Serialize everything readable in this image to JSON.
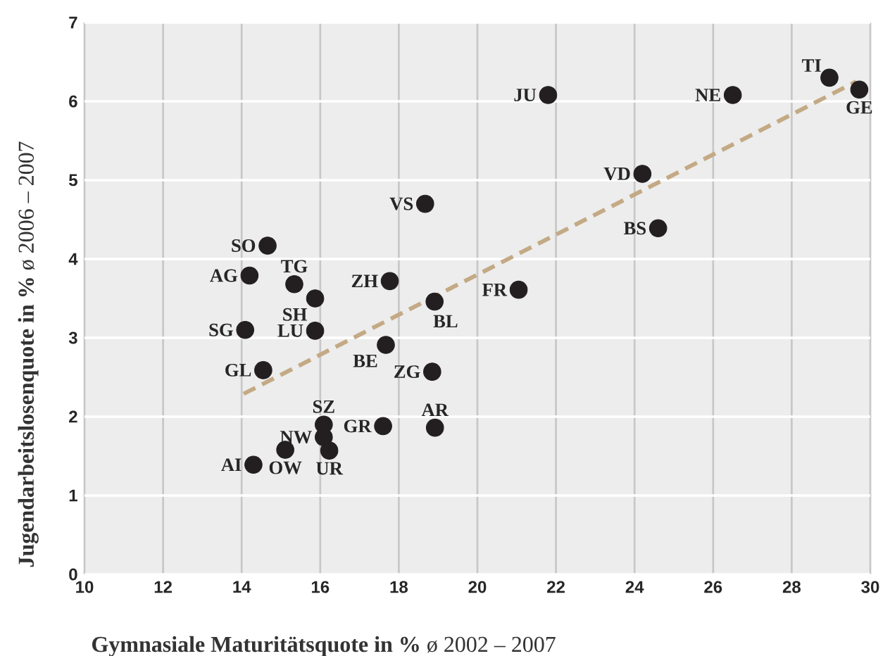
{
  "chart_data": {
    "type": "scatter",
    "xlabel": "**Gymnasiale Maturitätsquote in %** ø 2002 – 2007",
    "ylabel": "**Jugendarbeitslosenquote in %** ø 2006 – 2007",
    "xlim": [
      10,
      30
    ],
    "ylim": [
      0,
      7
    ],
    "xticks": [
      10,
      12,
      14,
      16,
      18,
      20,
      22,
      24,
      26,
      28,
      30
    ],
    "yticks": [
      0,
      1,
      2,
      3,
      4,
      5,
      6,
      7
    ],
    "grid": true,
    "series": [
      {
        "color": "#231f20",
        "marker": "circle",
        "x": [
          14.66,
          14.2,
          15.34,
          15.87,
          17.77,
          15.87,
          14.09,
          14.55,
          17.67,
          18.85,
          18.91,
          16.09,
          17.6,
          18.92,
          16.09,
          16.23,
          15.11,
          14.3,
          21.8,
          26.5,
          28.96,
          29.72,
          24.2,
          24.6,
          21.05,
          18.67
        ],
        "values": [
          4.17,
          3.79,
          3.68,
          3.5,
          3.72,
          3.09,
          3.1,
          2.59,
          2.91,
          2.57,
          3.46,
          1.9,
          1.88,
          1.86,
          1.74,
          1.57,
          1.58,
          1.39,
          6.08,
          6.08,
          6.3,
          6.15,
          5.08,
          4.39,
          3.61,
          4.7
        ]
      },
      {
        "type": "line",
        "color": "#c4a985",
        "line_style": "dashed",
        "marker": "none",
        "x": [
          14.05,
          29.64
        ],
        "values": [
          2.29,
          6.25
        ]
      }
    ],
    "annotations": [
      {
        "text": "SO",
        "x": 14.66,
        "y": 4.17
      },
      {
        "text": "AG",
        "x": 14.2,
        "y": 3.79
      },
      {
        "text": "TG",
        "x": 15.34,
        "y": 3.68
      },
      {
        "text": "SH",
        "x": 15.87,
        "y": 3.5
      },
      {
        "text": "ZH",
        "x": 17.77,
        "y": 3.72
      },
      {
        "text": "LU",
        "x": 15.87,
        "y": 3.09
      },
      {
        "text": "SG",
        "x": 14.09,
        "y": 3.1
      },
      {
        "text": "GL",
        "x": 14.55,
        "y": 2.59
      },
      {
        "text": "BE",
        "x": 17.67,
        "y": 2.91
      },
      {
        "text": "ZG",
        "x": 18.85,
        "y": 2.57
      },
      {
        "text": "BL",
        "x": 18.91,
        "y": 3.46
      },
      {
        "text": "SZ",
        "x": 16.09,
        "y": 1.9
      },
      {
        "text": "GR",
        "x": 17.6,
        "y": 1.88
      },
      {
        "text": "AR",
        "x": 18.92,
        "y": 1.86
      },
      {
        "text": "NW",
        "x": 16.09,
        "y": 1.74
      },
      {
        "text": "UR",
        "x": 16.23,
        "y": 1.57
      },
      {
        "text": "OW",
        "x": 15.11,
        "y": 1.58
      },
      {
        "text": "AI",
        "x": 14.3,
        "y": 1.39
      },
      {
        "text": "JU",
        "x": 21.8,
        "y": 6.08
      },
      {
        "text": "NE",
        "x": 26.5,
        "y": 6.08
      },
      {
        "text": "TI",
        "x": 28.96,
        "y": 6.3
      },
      {
        "text": "GE",
        "x": 29.72,
        "y": 6.15
      },
      {
        "text": "VD",
        "x": 24.2,
        "y": 5.08
      },
      {
        "text": "BS",
        "x": 24.6,
        "y": 4.39
      },
      {
        "text": "FR",
        "x": 21.05,
        "y": 3.61
      },
      {
        "text": "VS",
        "x": 18.67,
        "y": 4.7
      }
    ]
  }
}
